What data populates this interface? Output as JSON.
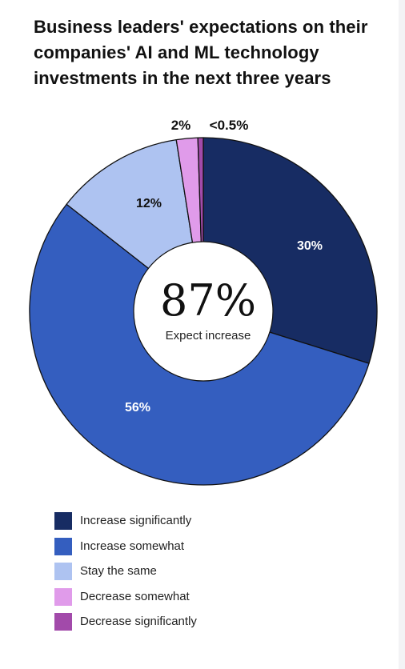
{
  "chart_data": {
    "type": "pie",
    "title": "Business leaders' expectations on their companies' AI and ML technology investments in the next three years",
    "center_value": "87%",
    "center_label": "Expect increase",
    "slices": [
      {
        "name": "Increase significantly",
        "value": 30,
        "label": "30%",
        "color": "#172c63"
      },
      {
        "name": "Increase somewhat",
        "value": 56,
        "label": "56%",
        "color": "#345ebf"
      },
      {
        "name": "Stay the same",
        "value": 12,
        "label": "12%",
        "color": "#aec3f1"
      },
      {
        "name": "Decrease somewhat",
        "value": 2,
        "label": "2%",
        "color": "#e09bea"
      },
      {
        "name": "Decrease significantly",
        "value": 0.5,
        "label": "<0.5%",
        "color": "#a24aaa"
      }
    ],
    "legend_position": "bottom-left"
  }
}
